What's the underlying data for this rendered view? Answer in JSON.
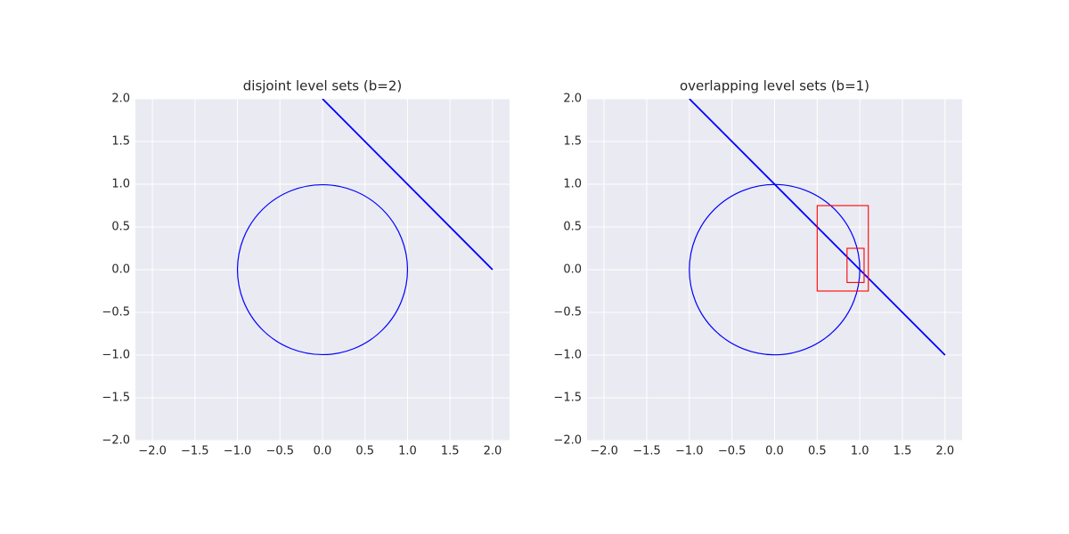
{
  "chart_data": [
    {
      "type": "line",
      "title": "disjoint level sets (b=2)",
      "xlim": [
        -2.2,
        2.2
      ],
      "ylim": [
        -2,
        2
      ],
      "xticks": [
        {
          "value": -2,
          "label": "−2.0"
        },
        {
          "value": -1.5,
          "label": "−1.5"
        },
        {
          "value": -1,
          "label": "−1.0"
        },
        {
          "value": -0.5,
          "label": "−0.5"
        },
        {
          "value": 0,
          "label": "0.0"
        },
        {
          "value": 0.5,
          "label": "0.5"
        },
        {
          "value": 1,
          "label": "1.0"
        },
        {
          "value": 1.5,
          "label": "1.5"
        },
        {
          "value": 2,
          "label": "2.0"
        }
      ],
      "yticks": [
        {
          "value": -2,
          "label": "−2.0"
        },
        {
          "value": -1.5,
          "label": "−1.5"
        },
        {
          "value": -1,
          "label": "−1.0"
        },
        {
          "value": -0.5,
          "label": "−0.5"
        },
        {
          "value": 0,
          "label": "0.0"
        },
        {
          "value": 0.5,
          "label": "0.5"
        },
        {
          "value": 1,
          "label": "1.0"
        },
        {
          "value": 1.5,
          "label": "1.5"
        },
        {
          "value": 2,
          "label": "2.0"
        }
      ],
      "grid": true,
      "circles": [
        {
          "center": [
            0,
            0
          ],
          "radius": 1,
          "color": "#0000ff"
        }
      ],
      "series": [
        {
          "color": "#0000ff",
          "x": [
            0,
            2
          ],
          "values": [
            2,
            0
          ]
        }
      ],
      "rectangles": []
    },
    {
      "type": "line",
      "title": "overlapping level sets (b=1)",
      "xlim": [
        -2.2,
        2.2
      ],
      "ylim": [
        -2,
        2
      ],
      "xticks": [
        {
          "value": -2,
          "label": "−2.0"
        },
        {
          "value": -1.5,
          "label": "−1.5"
        },
        {
          "value": -1,
          "label": "−1.0"
        },
        {
          "value": -0.5,
          "label": "−0.5"
        },
        {
          "value": 0,
          "label": "0.0"
        },
        {
          "value": 0.5,
          "label": "0.5"
        },
        {
          "value": 1,
          "label": "1.0"
        },
        {
          "value": 1.5,
          "label": "1.5"
        },
        {
          "value": 2,
          "label": "2.0"
        }
      ],
      "yticks": [
        {
          "value": -2,
          "label": "−2.0"
        },
        {
          "value": -1.5,
          "label": "−1.5"
        },
        {
          "value": -1,
          "label": "−1.0"
        },
        {
          "value": -0.5,
          "label": "−0.5"
        },
        {
          "value": 0,
          "label": "0.0"
        },
        {
          "value": 0.5,
          "label": "0.5"
        },
        {
          "value": 1,
          "label": "1.0"
        },
        {
          "value": 1.5,
          "label": "1.5"
        },
        {
          "value": 2,
          "label": "2.0"
        }
      ],
      "grid": true,
      "circles": [
        {
          "center": [
            0,
            0
          ],
          "radius": 1,
          "color": "#0000ff"
        }
      ],
      "series": [
        {
          "color": "#0000ff",
          "x": [
            -1,
            2
          ],
          "values": [
            2,
            -1
          ]
        }
      ],
      "rectangles": [
        {
          "x": [
            0.5,
            1.1
          ],
          "y": [
            -0.25,
            0.75
          ],
          "color": "#ff0000"
        },
        {
          "x": [
            0.85,
            1.05
          ],
          "y": [
            -0.15,
            0.25
          ],
          "color": "#ff0000"
        }
      ]
    }
  ]
}
